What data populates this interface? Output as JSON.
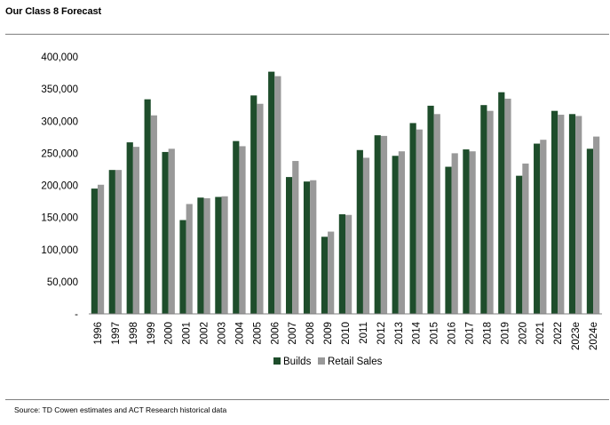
{
  "title": "Our Class 8 Forecast",
  "source": "Source: TD Cowen estimates and ACT Research historical data",
  "chart_data": {
    "type": "bar",
    "categories": [
      "1996",
      "1997",
      "1998",
      "1999",
      "2000",
      "2001",
      "2002",
      "2003",
      "2004",
      "2005",
      "2006",
      "2007",
      "2008",
      "2009",
      "2010",
      "2011",
      "2012",
      "2013",
      "2014",
      "2015",
      "2016",
      "2017",
      "2018",
      "2019",
      "2020",
      "2021",
      "2022",
      "2023e",
      "2024e"
    ],
    "series": [
      {
        "name": "Builds",
        "color": "#1e4d2b",
        "values": [
          195000,
          224000,
          267000,
          334000,
          252000,
          146000,
          181000,
          182000,
          269000,
          340000,
          377000,
          213000,
          206000,
          120000,
          155000,
          255000,
          278000,
          246000,
          297000,
          324000,
          229000,
          256000,
          325000,
          345000,
          215000,
          265000,
          316000,
          311000,
          257000
        ]
      },
      {
        "name": "Retail Sales",
        "color": "#999999",
        "values": [
          201000,
          224000,
          260000,
          309000,
          257000,
          171000,
          180000,
          183000,
          261000,
          327000,
          370000,
          238000,
          208000,
          128000,
          154000,
          243000,
          277000,
          253000,
          287000,
          311000,
          250000,
          253000,
          316000,
          335000,
          234000,
          271000,
          310000,
          308000,
          276000
        ]
      }
    ],
    "y_tick_labels": [
      "-",
      "50,000",
      "100,000",
      "150,000",
      "200,000",
      "250,000",
      "300,000",
      "350,000",
      "400,000"
    ],
    "ylim": [
      0,
      400000
    ],
    "grid": false,
    "legend_position": "bottom"
  }
}
